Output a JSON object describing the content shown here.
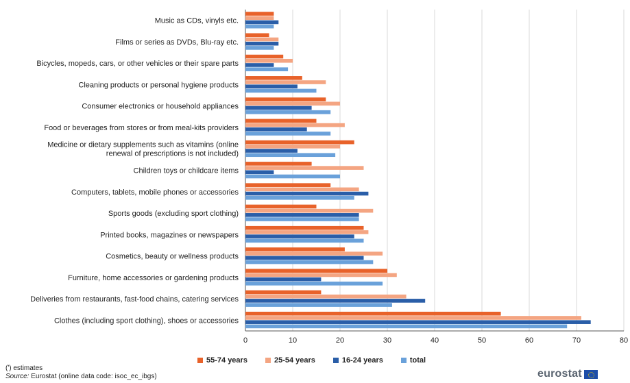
{
  "chart_data": {
    "type": "bar",
    "orientation": "horizontal",
    "categories": [
      "Music as CDs, vinyls etc.",
      "Films or series as DVDs, Blu-ray etc.",
      "Bicycles, mopeds, cars, or other vehicles or their spare parts",
      "Cleaning products or personal hygiene products",
      "Consumer electronics or household appliances",
      "Food or beverages from stores or from meal-kits providers",
      [
        "Medicine or dietary supplements such as vitamins (online",
        "renewal of prescriptions is not included)"
      ],
      "Children toys or childcare items",
      "Computers, tablets, mobile phones or accessories",
      "Sports goods (excluding sport clothing)",
      "Printed books, magazines or newspapers",
      "Cosmetics, beauty or wellness products",
      "Furniture, home accessories or gardening products",
      "Deliveries from restaurants, fast-food chains, catering services",
      "Clothes (including sport clothing), shoes or accessories"
    ],
    "series": [
      {
        "name": "55-74 years",
        "color": "#e8622a",
        "values": [
          6,
          5,
          8,
          12,
          17,
          15,
          23,
          14,
          18,
          15,
          25,
          21,
          30,
          16,
          54
        ]
      },
      {
        "name": "25-54 years",
        "color": "#f4a582",
        "values": [
          6,
          7,
          10,
          17,
          20,
          21,
          20,
          25,
          24,
          27,
          26,
          29,
          32,
          34,
          71
        ]
      },
      {
        "name": "16-24 years",
        "color": "#2a5ea8",
        "values": [
          7,
          7,
          6,
          11,
          14,
          13,
          11,
          6,
          26,
          24,
          23,
          25,
          16,
          38,
          73
        ]
      },
      {
        "name": "total",
        "color": "#6aa1da",
        "values": [
          6,
          6,
          9,
          15,
          18,
          18,
          19,
          20,
          23,
          24,
          25,
          27,
          29,
          31,
          68
        ]
      }
    ],
    "xlim": [
      0,
      80
    ],
    "xticks": [
      "0",
      "10",
      "20",
      "30",
      "40",
      "50",
      "60",
      "70",
      "80"
    ],
    "grid": "vertical",
    "legend_position": "bottom"
  },
  "footnote": "(ʹ) estimates",
  "source_label": "Source:",
  "source_text": "Eurostat (online data code: isoc_ec_ibgs)",
  "logo_text": "eurostat"
}
